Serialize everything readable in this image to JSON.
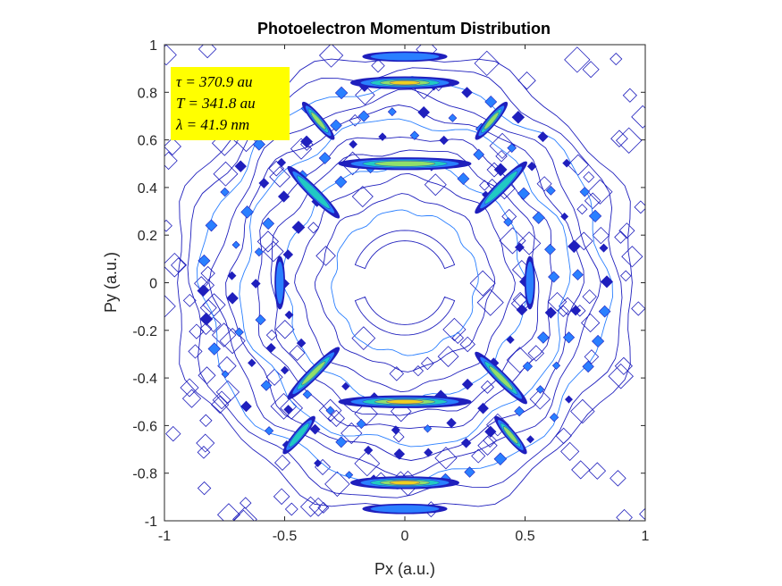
{
  "chart_data": {
    "type": "contour",
    "title": "Photoelectron Momentum Distribution",
    "xlabel": "Px (a.u.)",
    "ylabel": "Py (a.u.)",
    "xlim": [
      -1,
      1
    ],
    "ylim": [
      -1,
      1
    ],
    "x_ticks": [
      "-1",
      "-0.5",
      "0",
      "0.5",
      "1"
    ],
    "y_ticks": [
      "1",
      "0.8",
      "0.6",
      "0.4",
      "0.2",
      "0",
      "-0.2",
      "-0.4",
      "-0.6",
      "-0.8",
      "-1"
    ],
    "x_tick_values": [
      -1,
      -0.5,
      0,
      0.5,
      1
    ],
    "y_tick_values": [
      1,
      0.8,
      0.6,
      0.4,
      0.2,
      0,
      -0.2,
      -0.4,
      -0.6,
      -0.8,
      -1
    ],
    "annotation": {
      "lines": [
        "τ = 370.9 au",
        "T = 341.8 au",
        "λ = 41.9 nm"
      ],
      "background": "#ffff00"
    },
    "colormap": [
      "#1f1fbd",
      "#2a7fff",
      "#21c9c4",
      "#8fe06a",
      "#f0d020"
    ],
    "rings": [
      {
        "radius": 0.5,
        "features": [
          {
            "x": 0.0,
            "y": 0.5,
            "w": 0.55,
            "h": 0.05,
            "level": 3
          },
          {
            "x": 0.0,
            "y": -0.5,
            "w": 0.55,
            "h": 0.05,
            "level": 4
          },
          {
            "x": -0.38,
            "y": 0.38,
            "w": 0.3,
            "h": 0.045,
            "angle": 45,
            "level": 2
          },
          {
            "x": 0.4,
            "y": 0.4,
            "w": 0.3,
            "h": 0.045,
            "angle": -45,
            "level": 2
          },
          {
            "x": -0.38,
            "y": -0.38,
            "w": 0.3,
            "h": 0.045,
            "angle": -45,
            "level": 3
          },
          {
            "x": 0.4,
            "y": -0.4,
            "w": 0.3,
            "h": 0.045,
            "angle": 45,
            "level": 3
          },
          {
            "x": -0.52,
            "y": 0.0,
            "w": 0.04,
            "h": 0.22,
            "level": 1
          },
          {
            "x": 0.52,
            "y": 0.0,
            "w": 0.04,
            "h": 0.22,
            "level": 1
          }
        ]
      },
      {
        "radius": 0.72,
        "features": [
          {
            "x": 0.0,
            "y": 0.84,
            "w": 0.45,
            "h": 0.05,
            "level": 4
          },
          {
            "x": 0.0,
            "y": -0.84,
            "w": 0.45,
            "h": 0.05,
            "level": 4
          },
          {
            "x": 0.0,
            "y": 0.95,
            "w": 0.35,
            "h": 0.04,
            "level": 1
          },
          {
            "x": 0.0,
            "y": -0.95,
            "w": 0.35,
            "h": 0.04,
            "level": 1
          },
          {
            "x": -0.36,
            "y": 0.68,
            "w": 0.2,
            "h": 0.04,
            "angle": 50,
            "level": 3
          },
          {
            "x": 0.36,
            "y": 0.68,
            "w": 0.2,
            "h": 0.04,
            "angle": -50,
            "level": 3
          },
          {
            "x": -0.44,
            "y": -0.64,
            "w": 0.2,
            "h": 0.04,
            "angle": -50,
            "level": 2
          },
          {
            "x": 0.44,
            "y": -0.64,
            "w": 0.2,
            "h": 0.04,
            "angle": 50,
            "level": 3
          }
        ]
      }
    ],
    "inner_arcs": [
      {
        "cx": 0.0,
        "cy": 0.0,
        "r": 0.22,
        "from": 20,
        "to": 160
      },
      {
        "cx": 0.0,
        "cy": 0.0,
        "r": 0.22,
        "from": 200,
        "to": 340
      }
    ]
  }
}
